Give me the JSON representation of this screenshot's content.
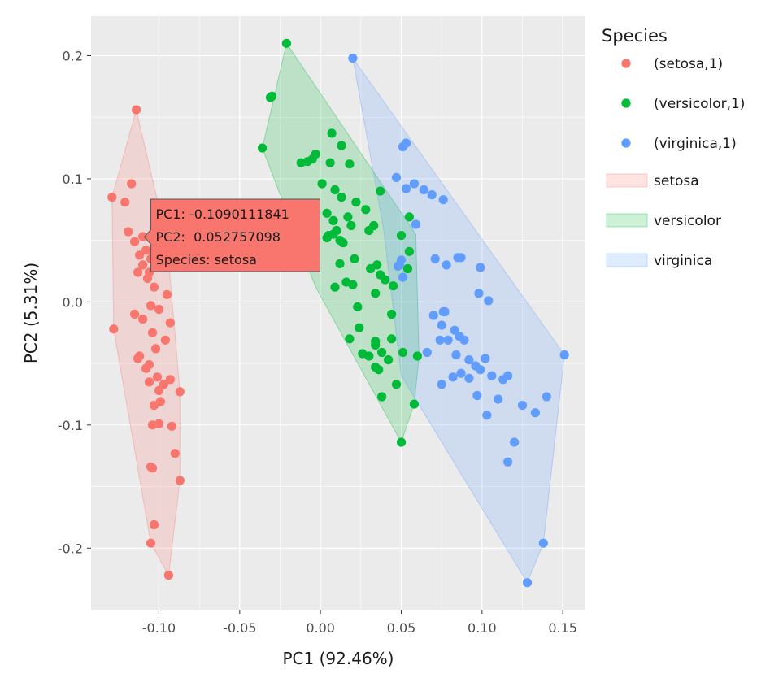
{
  "chart_data": {
    "type": "scatter",
    "xlabel": "PC1 (92.46%)",
    "ylabel": "PC2 (5.31%)",
    "xlim": [
      -0.142,
      0.164
    ],
    "ylim": [
      -0.25,
      0.232
    ],
    "x_ticks": [
      -0.1,
      -0.05,
      0.0,
      0.05,
      0.1,
      0.15
    ],
    "x_tick_labels": [
      "-0.10",
      "-0.05",
      "0.00",
      "0.05",
      "0.10",
      "0.15"
    ],
    "y_ticks": [
      -0.2,
      -0.1,
      0.0,
      0.1,
      0.2
    ],
    "y_tick_labels": [
      "-0.2",
      "-0.1",
      "0.0",
      "0.1",
      "0.2"
    ],
    "grid": true,
    "legend": {
      "title": "Species",
      "position": "right",
      "point_entries": [
        "(setosa,1)",
        "(versicolor,1)",
        "(virginica,1)"
      ],
      "hull_entries": [
        "setosa",
        "versicolor",
        "virginica"
      ]
    },
    "colors": {
      "setosa": "#F8766D",
      "versicolor": "#00BA38",
      "virginica": "#619CFF",
      "panel": "#EBEBEB",
      "grid": "#FFFFFF"
    },
    "series": [
      {
        "name": "setosa",
        "hull": [
          [
            -0.114,
            0.156
          ],
          [
            -0.095,
            0.049
          ],
          [
            -0.087,
            -0.073
          ],
          [
            -0.087,
            -0.145
          ],
          [
            -0.094,
            -0.222
          ],
          [
            -0.105,
            -0.196
          ],
          [
            -0.128,
            -0.022
          ],
          [
            -0.129,
            0.085
          ]
        ],
        "points": [
          [
            -0.114,
            0.156
          ],
          [
            -0.117,
            0.096
          ],
          [
            -0.129,
            0.085
          ],
          [
            -0.121,
            0.081
          ],
          [
            -0.119,
            0.057
          ],
          [
            -0.115,
            0.049
          ],
          [
            -0.11,
            0.053
          ],
          [
            -0.112,
            0.038
          ],
          [
            -0.108,
            0.042
          ],
          [
            -0.105,
            0.035
          ],
          [
            -0.11,
            0.03
          ],
          [
            -0.113,
            0.024
          ],
          [
            -0.106,
            0.024
          ],
          [
            -0.107,
            0.019
          ],
          [
            -0.103,
            0.012
          ],
          [
            -0.095,
            0.006
          ],
          [
            -0.105,
            -0.003
          ],
          [
            -0.115,
            -0.01
          ],
          [
            -0.1,
            -0.006
          ],
          [
            -0.11,
            -0.014
          ],
          [
            -0.093,
            -0.017
          ],
          [
            -0.128,
            -0.022
          ],
          [
            -0.104,
            -0.025
          ],
          [
            -0.096,
            -0.031
          ],
          [
            -0.102,
            -0.038
          ],
          [
            -0.112,
            -0.044
          ],
          [
            -0.113,
            -0.046
          ],
          [
            -0.106,
            -0.051
          ],
          [
            -0.108,
            -0.054
          ],
          [
            -0.101,
            -0.061
          ],
          [
            -0.106,
            -0.065
          ],
          [
            -0.097,
            -0.067
          ],
          [
            -0.093,
            -0.063
          ],
          [
            -0.1,
            -0.072
          ],
          [
            -0.087,
            -0.073
          ],
          [
            -0.099,
            -0.081
          ],
          [
            -0.103,
            -0.084
          ],
          [
            -0.1,
            -0.099
          ],
          [
            -0.104,
            -0.1
          ],
          [
            -0.092,
            -0.101
          ],
          [
            -0.09,
            -0.123
          ],
          [
            -0.105,
            -0.134
          ],
          [
            -0.104,
            -0.135
          ],
          [
            -0.087,
            -0.145
          ],
          [
            -0.103,
            -0.181
          ],
          [
            -0.105,
            -0.196
          ],
          [
            -0.094,
            -0.222
          ]
        ]
      },
      {
        "name": "versicolor",
        "hull": [
          [
            -0.021,
            0.21
          ],
          [
            0.059,
            0.055
          ],
          [
            0.061,
            -0.045
          ],
          [
            0.058,
            -0.083
          ],
          [
            0.05,
            -0.114
          ],
          [
            -0.003,
            0.012
          ],
          [
            -0.036,
            0.125
          ]
        ],
        "points": [
          [
            -0.021,
            0.21
          ],
          [
            -0.03,
            0.167
          ],
          [
            -0.031,
            0.166
          ],
          [
            -0.036,
            0.125
          ],
          [
            0.007,
            0.137
          ],
          [
            0.013,
            0.127
          ],
          [
            -0.003,
            0.12
          ],
          [
            -0.005,
            0.116
          ],
          [
            -0.008,
            0.114
          ],
          [
            -0.012,
            0.113
          ],
          [
            0.006,
            0.113
          ],
          [
            0.018,
            0.112
          ],
          [
            0.001,
            0.096
          ],
          [
            0.009,
            0.091
          ],
          [
            0.022,
            0.081
          ],
          [
            0.037,
            0.09
          ],
          [
            0.013,
            0.085
          ],
          [
            0.028,
            0.075
          ],
          [
            0.017,
            0.069
          ],
          [
            0.004,
            0.072
          ],
          [
            0.019,
            0.062
          ],
          [
            0.008,
            0.066
          ],
          [
            0.033,
            0.062
          ],
          [
            0.055,
            0.069
          ],
          [
            0.03,
            0.058
          ],
          [
            0.01,
            0.058
          ],
          [
            0.012,
            0.05
          ],
          [
            0.008,
            0.055
          ],
          [
            0.005,
            0.054
          ],
          [
            0.004,
            0.052
          ],
          [
            0.05,
            0.054
          ],
          [
            0.055,
            0.041
          ],
          [
            0.014,
            0.048
          ],
          [
            0.021,
            0.035
          ],
          [
            0.012,
            0.031
          ],
          [
            0.035,
            0.03
          ],
          [
            0.031,
            0.027
          ],
          [
            0.04,
            0.018
          ],
          [
            0.054,
            0.027
          ],
          [
            0.037,
            0.022
          ],
          [
            0.02,
            0.014
          ],
          [
            0.045,
            0.013
          ],
          [
            0.009,
            0.012
          ],
          [
            0.016,
            0.016
          ],
          [
            0.034,
            0.007
          ],
          [
            0.023,
            -0.004
          ],
          [
            0.044,
            -0.01
          ],
          [
            0.024,
            -0.021
          ],
          [
            0.034,
            -0.032
          ],
          [
            0.038,
            -0.041
          ],
          [
            0.034,
            -0.035
          ],
          [
            0.051,
            -0.041
          ],
          [
            0.06,
            -0.044
          ],
          [
            0.042,
            -0.047
          ],
          [
            0.034,
            -0.053
          ],
          [
            0.036,
            -0.055
          ],
          [
            0.047,
            -0.067
          ],
          [
            0.038,
            -0.077
          ],
          [
            0.058,
            -0.083
          ],
          [
            0.05,
            -0.114
          ],
          [
            0.026,
            -0.042
          ],
          [
            0.03,
            -0.044
          ],
          [
            0.018,
            -0.03
          ],
          [
            0.044,
            -0.03
          ]
        ]
      },
      {
        "name": "virginica",
        "hull": [
          [
            0.02,
            0.198
          ],
          [
            0.151,
            -0.043
          ],
          [
            0.138,
            -0.196
          ],
          [
            0.128,
            -0.228
          ],
          [
            0.05,
            -0.06
          ],
          [
            0.039,
            0.06
          ]
        ],
        "points": [
          [
            0.02,
            0.198
          ],
          [
            0.053,
            0.129
          ],
          [
            0.051,
            0.126
          ],
          [
            0.047,
            0.101
          ],
          [
            0.053,
            0.092
          ],
          [
            0.058,
            0.096
          ],
          [
            0.064,
            0.091
          ],
          [
            0.069,
            0.087
          ],
          [
            0.076,
            0.083
          ],
          [
            0.059,
            0.063
          ],
          [
            0.071,
            0.035
          ],
          [
            0.078,
            0.03
          ],
          [
            0.085,
            0.036
          ],
          [
            0.087,
            0.036
          ],
          [
            0.099,
            0.028
          ],
          [
            0.098,
            0.007
          ],
          [
            0.104,
            0.001
          ],
          [
            0.048,
            0.029
          ],
          [
            0.05,
            0.034
          ],
          [
            0.051,
            0.02
          ],
          [
            0.049,
            0.03
          ],
          [
            0.07,
            -0.011
          ],
          [
            0.076,
            -0.008
          ],
          [
            0.077,
            -0.008
          ],
          [
            0.075,
            -0.019
          ],
          [
            0.083,
            -0.023
          ],
          [
            0.086,
            -0.028
          ],
          [
            0.079,
            -0.031
          ],
          [
            0.089,
            -0.031
          ],
          [
            0.074,
            -0.031
          ],
          [
            0.066,
            -0.041
          ],
          [
            0.084,
            -0.043
          ],
          [
            0.092,
            -0.047
          ],
          [
            0.096,
            -0.052
          ],
          [
            0.102,
            -0.046
          ],
          [
            0.099,
            -0.055
          ],
          [
            0.087,
            -0.058
          ],
          [
            0.082,
            -0.061
          ],
          [
            0.092,
            -0.062
          ],
          [
            0.106,
            -0.06
          ],
          [
            0.113,
            -0.063
          ],
          [
            0.116,
            -0.06
          ],
          [
            0.151,
            -0.043
          ],
          [
            0.075,
            -0.067
          ],
          [
            0.097,
            -0.076
          ],
          [
            0.11,
            -0.079
          ],
          [
            0.14,
            -0.077
          ],
          [
            0.133,
            -0.09
          ],
          [
            0.103,
            -0.092
          ],
          [
            0.12,
            -0.114
          ],
          [
            0.116,
            -0.13
          ],
          [
            0.138,
            -0.196
          ],
          [
            0.128,
            -0.228
          ],
          [
            0.125,
            -0.084
          ]
        ]
      }
    ],
    "tooltip": {
      "species": "setosa",
      "x": -0.1090111841,
      "y": 0.052757098,
      "lines": [
        "PC1: -0.1090111841",
        "PC2:  0.052757098",
        "Species: setosa"
      ]
    }
  }
}
